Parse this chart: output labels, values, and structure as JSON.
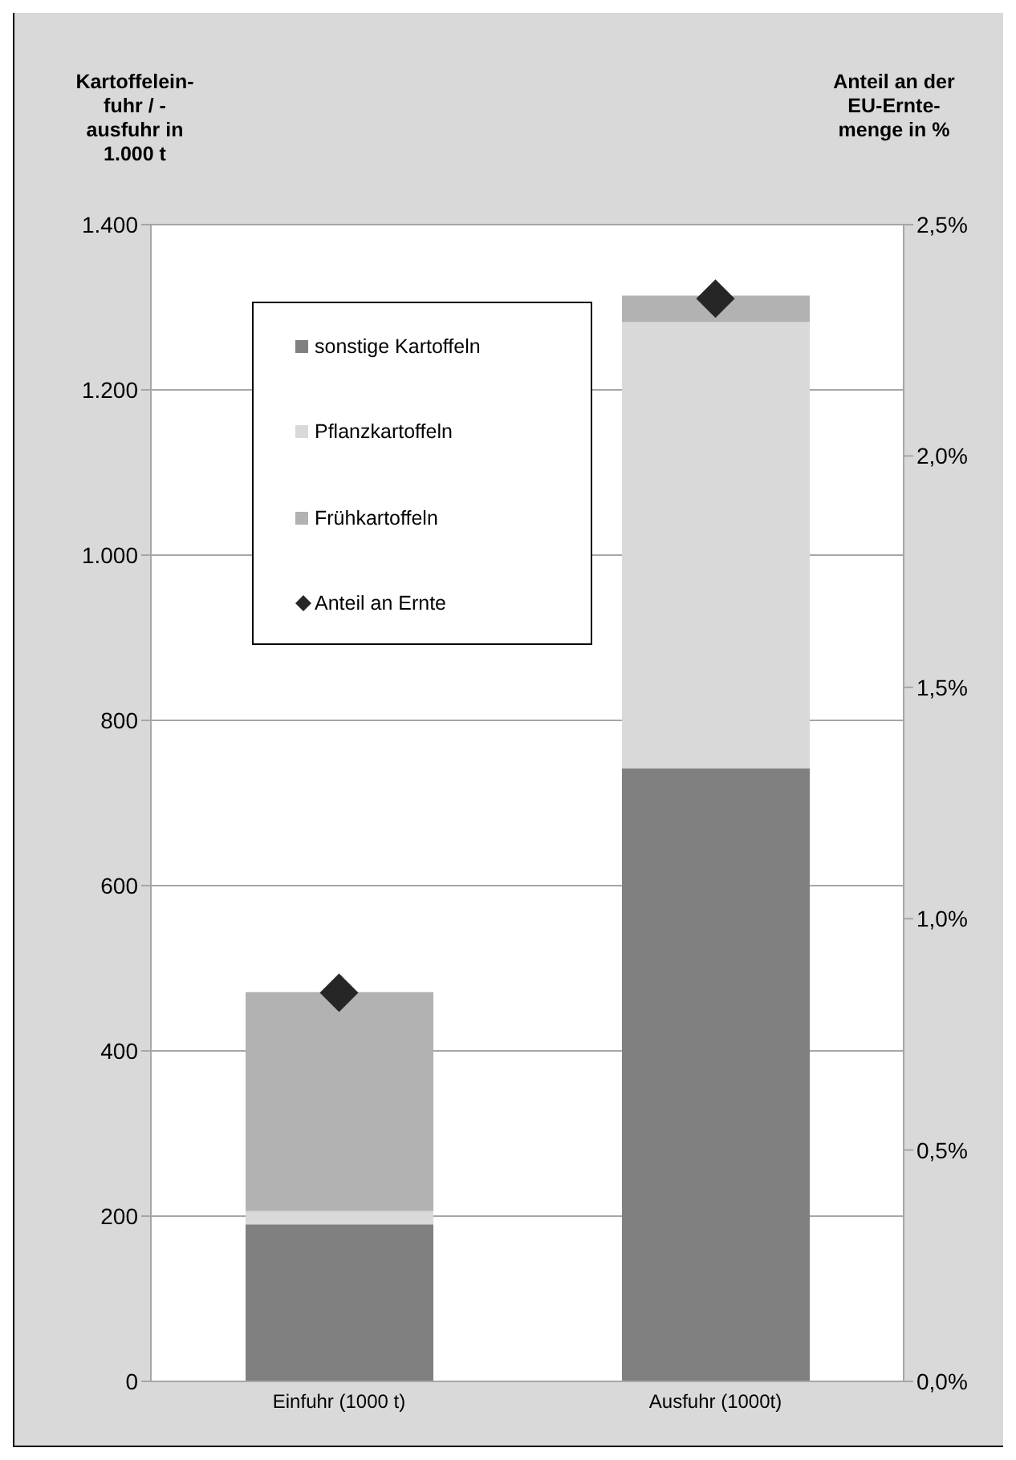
{
  "chart_data": {
    "type": "bar",
    "stacked": true,
    "categories": [
      "Einfuhr (1000 t)",
      "Ausfuhr (1000t)"
    ],
    "ylabel": "Kartoffelein-\nfuhr / -\nausfuhr in\n1.000 t",
    "y2label": "Anteil an der\nEU-Ernte-\nmenge in %",
    "series": [
      {
        "name": "sonstige Kartoffeln",
        "color": "#808080",
        "values": [
          190,
          742
        ]
      },
      {
        "name": "Pflanzkartoffeln",
        "color": "#d9d9d9",
        "values": [
          16,
          540
        ]
      },
      {
        "name": "Frühkartoffeln",
        "color": "#b2b2b2",
        "values": [
          265,
          32
        ]
      },
      {
        "name": "Anteil an Ernte",
        "type": "scatter",
        "axis": "y2",
        "color": "#262626",
        "marker": "diamond",
        "values": [
          0.84,
          2.34
        ]
      }
    ],
    "ylim": [
      0,
      1400
    ],
    "yticks": [
      0,
      {
        "value": 200,
        "label": "200"
      },
      {
        "value": 400,
        "label": "400"
      },
      {
        "value": 600,
        "label": "600"
      },
      {
        "value": 800,
        "label": "800"
      },
      {
        "value": 1000,
        "label": "1.000"
      },
      {
        "value": 1200,
        "label": "1.200"
      },
      {
        "value": 1400,
        "label": "1.400"
      }
    ],
    "y2lim": [
      0,
      2.5
    ],
    "y2ticks": [
      {
        "value": 0,
        "label": "0,0%"
      },
      {
        "value": 0.5,
        "label": "0,5%"
      },
      {
        "value": 1,
        "label": "1,0%"
      },
      {
        "value": 1.5,
        "label": "1,5%"
      },
      {
        "value": 2,
        "label": "2,0%"
      },
      {
        "value": 2.5,
        "label": "2,5%"
      }
    ],
    "grid": "y",
    "legend": "top left"
  }
}
